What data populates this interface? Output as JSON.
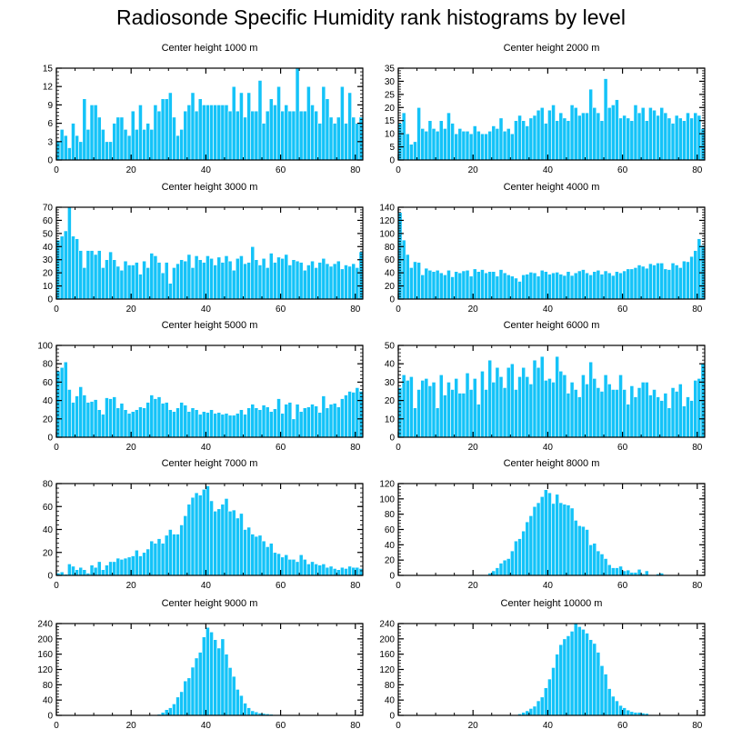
{
  "title": "Radiosonde Specific Humidity rank histograms by level",
  "colors": {
    "bar": "#14C3F8",
    "bar_edge": "#FFFFFF",
    "axis": "#000000"
  },
  "chart_data": [
    {
      "type": "bar",
      "title": "Center height 1000 m",
      "xlabel": "",
      "ylabel": "",
      "xlim": [
        0,
        82
      ],
      "xticks": [
        0,
        20,
        40,
        60,
        80
      ],
      "ylim": [
        0,
        15
      ],
      "yticks": [
        0,
        3,
        6,
        9,
        12,
        15
      ],
      "values": [
        3,
        5,
        4,
        2,
        6,
        4,
        3,
        10,
        5,
        9,
        9,
        7,
        5,
        3,
        3,
        6,
        7,
        7,
        5,
        4,
        8,
        5,
        9,
        5,
        6,
        5,
        9,
        8,
        10,
        10,
        11,
        7,
        4,
        5,
        8,
        9,
        11,
        8,
        10,
        9,
        9,
        9,
        9,
        9,
        9,
        9,
        8,
        12,
        8,
        11,
        7,
        11,
        8,
        8,
        13,
        6,
        8,
        10,
        9,
        12,
        8,
        9,
        8,
        8,
        15,
        8,
        8,
        12,
        9,
        8,
        6,
        12,
        10,
        7,
        6,
        7,
        12,
        6,
        11,
        7,
        6,
        7
      ]
    },
    {
      "type": "bar",
      "title": "Center height 2000 m",
      "xlabel": "",
      "ylabel": "",
      "xlim": [
        0,
        82
      ],
      "xticks": [
        0,
        20,
        40,
        60,
        80
      ],
      "ylim": [
        0,
        35
      ],
      "yticks": [
        0,
        5,
        10,
        15,
        20,
        25,
        30,
        35
      ],
      "values": [
        14,
        18,
        10,
        6,
        7,
        20,
        12,
        11,
        15,
        12,
        11,
        15,
        12,
        18,
        14,
        10,
        12,
        11,
        11,
        10,
        13,
        11,
        10,
        10,
        11,
        13,
        12,
        16,
        11,
        12,
        10,
        15,
        17,
        15,
        13,
        16,
        17,
        19,
        20,
        14,
        19,
        21,
        15,
        18,
        16,
        15,
        21,
        20,
        17,
        18,
        18,
        27,
        20,
        18,
        15,
        31,
        20,
        21,
        23,
        16,
        17,
        16,
        15,
        21,
        18,
        20,
        15,
        20,
        19,
        17,
        20,
        18,
        16,
        14,
        17,
        16,
        15,
        18,
        16,
        18,
        17,
        12
      ]
    },
    {
      "type": "bar",
      "title": "Center height 3000 m",
      "xlabel": "",
      "ylabel": "",
      "xlim": [
        0,
        82
      ],
      "xticks": [
        0,
        20,
        40,
        60,
        80
      ],
      "ylim": [
        0,
        70
      ],
      "yticks": [
        0,
        10,
        20,
        30,
        40,
        50,
        60,
        70
      ],
      "values": [
        45,
        48,
        52,
        70,
        48,
        46,
        37,
        24,
        37,
        37,
        34,
        37,
        24,
        30,
        36,
        30,
        25,
        22,
        29,
        26,
        26,
        28,
        19,
        29,
        24,
        35,
        33,
        28,
        20,
        28,
        12,
        24,
        27,
        30,
        29,
        34,
        24,
        33,
        30,
        28,
        33,
        31,
        26,
        32,
        28,
        33,
        29,
        22,
        31,
        33,
        27,
        28,
        40,
        30,
        26,
        31,
        24,
        35,
        28,
        32,
        31,
        34,
        26,
        30,
        29,
        28,
        22,
        26,
        29,
        24,
        28,
        31,
        27,
        25,
        27,
        29,
        23,
        26,
        25,
        27,
        24,
        36
      ]
    },
    {
      "type": "bar",
      "title": "Center height 4000 m",
      "xlabel": "",
      "ylabel": "",
      "xlim": [
        0,
        82
      ],
      "xticks": [
        0,
        20,
        40,
        60,
        80
      ],
      "ylim": [
        0,
        140
      ],
      "yticks": [
        0,
        20,
        40,
        60,
        80,
        100,
        120,
        140
      ],
      "values": [
        132,
        90,
        68,
        48,
        57,
        56,
        37,
        47,
        44,
        42,
        44,
        40,
        37,
        44,
        34,
        42,
        40,
        43,
        44,
        35,
        46,
        42,
        45,
        40,
        42,
        42,
        35,
        45,
        40,
        37,
        35,
        32,
        27,
        37,
        38,
        41,
        40,
        35,
        44,
        42,
        38,
        40,
        41,
        38,
        36,
        42,
        36,
        40,
        43,
        45,
        40,
        37,
        42,
        44,
        38,
        43,
        40,
        36,
        42,
        40,
        43,
        46,
        46,
        48,
        52,
        50,
        47,
        54,
        52,
        55,
        55,
        46,
        45,
        55,
        52,
        48,
        58,
        57,
        65,
        74,
        92,
        82
      ]
    },
    {
      "type": "bar",
      "title": "Center height 5000 m",
      "xlabel": "",
      "ylabel": "",
      "xlim": [
        0,
        82
      ],
      "xticks": [
        0,
        20,
        40,
        60,
        80
      ],
      "ylim": [
        0,
        100
      ],
      "yticks": [
        0,
        20,
        40,
        60,
        80,
        100
      ],
      "values": [
        72,
        76,
        82,
        52,
        38,
        45,
        55,
        46,
        38,
        39,
        41,
        30,
        25,
        43,
        42,
        44,
        32,
        37,
        30,
        26,
        28,
        30,
        33,
        32,
        38,
        46,
        42,
        44,
        37,
        38,
        30,
        28,
        32,
        38,
        35,
        28,
        32,
        30,
        25,
        28,
        27,
        30,
        26,
        27,
        25,
        26,
        24,
        24,
        26,
        30,
        25,
        32,
        36,
        32,
        30,
        35,
        33,
        28,
        31,
        42,
        26,
        36,
        38,
        20,
        36,
        28,
        32,
        33,
        36,
        34,
        27,
        45,
        32,
        36,
        37,
        33,
        42,
        46,
        50,
        49,
        54,
        50
      ]
    },
    {
      "type": "bar",
      "title": "Center height 6000 m",
      "xlabel": "",
      "ylabel": "",
      "xlim": [
        0,
        82
      ],
      "xticks": [
        0,
        20,
        40,
        60,
        80
      ],
      "ylim": [
        0,
        50
      ],
      "yticks": [
        0,
        10,
        20,
        30,
        40,
        50
      ],
      "values": [
        27,
        34,
        31,
        33,
        16,
        26,
        31,
        32,
        28,
        30,
        16,
        34,
        23,
        30,
        26,
        32,
        24,
        24,
        35,
        26,
        32,
        18,
        36,
        26,
        42,
        30,
        38,
        33,
        27,
        38,
        40,
        26,
        33,
        38,
        33,
        29,
        42,
        38,
        44,
        31,
        32,
        30,
        44,
        36,
        34,
        24,
        30,
        26,
        22,
        34,
        29,
        41,
        32,
        27,
        25,
        34,
        29,
        26,
        26,
        34,
        26,
        18,
        28,
        22,
        27,
        30,
        30,
        23,
        26,
        22,
        20,
        24,
        16,
        27,
        25,
        29,
        17,
        22,
        20,
        31,
        32,
        40
      ]
    },
    {
      "type": "bar",
      "title": "Center height 7000 m",
      "xlabel": "",
      "ylabel": "",
      "xlim": [
        0,
        82
      ],
      "xticks": [
        0,
        20,
        40,
        60,
        80
      ],
      "ylim": [
        0,
        80
      ],
      "yticks": [
        0,
        20,
        40,
        60,
        80
      ],
      "values": [
        2,
        3,
        1,
        10,
        8,
        5,
        7,
        5,
        2,
        9,
        7,
        12,
        5,
        9,
        12,
        12,
        15,
        14,
        15,
        16,
        17,
        22,
        17,
        20,
        23,
        30,
        28,
        32,
        28,
        35,
        40,
        36,
        36,
        44,
        52,
        62,
        68,
        72,
        70,
        75,
        78,
        65,
        56,
        58,
        62,
        67,
        56,
        57,
        50,
        54,
        40,
        42,
        36,
        34,
        35,
        30,
        25,
        28,
        20,
        19,
        16,
        18,
        14,
        14,
        12,
        18,
        14,
        10,
        12,
        10,
        9,
        10,
        7,
        8,
        6,
        5,
        7,
        6,
        8,
        7,
        7,
        6
      ]
    },
    {
      "type": "bar",
      "title": "Center height 8000 m",
      "xlabel": "",
      "ylabel": "",
      "xlim": [
        0,
        82
      ],
      "xticks": [
        0,
        20,
        40,
        60,
        80
      ],
      "ylim": [
        0,
        120
      ],
      "yticks": [
        0,
        20,
        40,
        60,
        80,
        100,
        120
      ],
      "values": [
        0,
        0,
        0,
        0,
        0,
        0,
        0,
        0,
        0,
        0,
        0,
        0,
        0,
        0,
        0,
        0,
        0,
        0,
        0,
        1,
        0,
        1,
        1,
        0,
        3,
        6,
        10,
        16,
        20,
        22,
        32,
        45,
        48,
        58,
        70,
        78,
        90,
        95,
        103,
        112,
        108,
        94,
        106,
        95,
        93,
        92,
        88,
        72,
        65,
        64,
        60,
        40,
        42,
        32,
        28,
        22,
        14,
        10,
        10,
        12,
        6,
        7,
        4,
        4,
        8,
        2,
        6,
        1,
        0,
        2,
        3,
        1,
        0,
        0,
        0,
        0,
        0,
        0,
        0,
        0,
        0,
        0
      ]
    },
    {
      "type": "bar",
      "title": "Center height 9000 m",
      "xlabel": "",
      "ylabel": "",
      "xlim": [
        0,
        82
      ],
      "xticks": [
        0,
        20,
        40,
        60,
        80
      ],
      "ylim": [
        0,
        240
      ],
      "yticks": [
        0,
        40,
        80,
        120,
        160,
        200,
        240
      ],
      "values": [
        0,
        0,
        0,
        0,
        0,
        0,
        0,
        0,
        0,
        0,
        0,
        0,
        0,
        0,
        0,
        0,
        0,
        0,
        0,
        0,
        0,
        0,
        0,
        0,
        0,
        0,
        1,
        3,
        8,
        15,
        20,
        30,
        48,
        62,
        90,
        98,
        126,
        150,
        165,
        205,
        230,
        218,
        198,
        176,
        200,
        160,
        125,
        102,
        68,
        52,
        32,
        20,
        12,
        9,
        6,
        5,
        4,
        3,
        2,
        2,
        1,
        1,
        0,
        0,
        0,
        0,
        0,
        0,
        0,
        0,
        0,
        0,
        0,
        0,
        0,
        0,
        0,
        0,
        0,
        0,
        0,
        0
      ]
    },
    {
      "type": "bar",
      "title": "Center height 10000 m",
      "xlabel": "",
      "ylabel": "",
      "xlim": [
        0,
        82
      ],
      "xticks": [
        0,
        20,
        40,
        60,
        80
      ],
      "ylim": [
        0,
        240
      ],
      "yticks": [
        0,
        40,
        80,
        120,
        160,
        200,
        240
      ],
      "values": [
        0,
        0,
        0,
        0,
        0,
        0,
        0,
        0,
        0,
        0,
        0,
        0,
        0,
        0,
        0,
        0,
        0,
        0,
        0,
        0,
        0,
        0,
        0,
        0,
        0,
        0,
        0,
        0,
        0,
        0,
        0,
        0,
        4,
        8,
        12,
        18,
        24,
        38,
        48,
        72,
        95,
        125,
        160,
        185,
        200,
        208,
        220,
        240,
        232,
        225,
        215,
        198,
        188,
        165,
        130,
        108,
        70,
        50,
        38,
        26,
        20,
        14,
        10,
        8,
        8,
        6,
        5,
        2,
        1,
        1,
        0,
        0,
        0,
        0,
        0,
        0,
        0,
        0,
        0,
        0,
        0,
        0
      ]
    }
  ]
}
